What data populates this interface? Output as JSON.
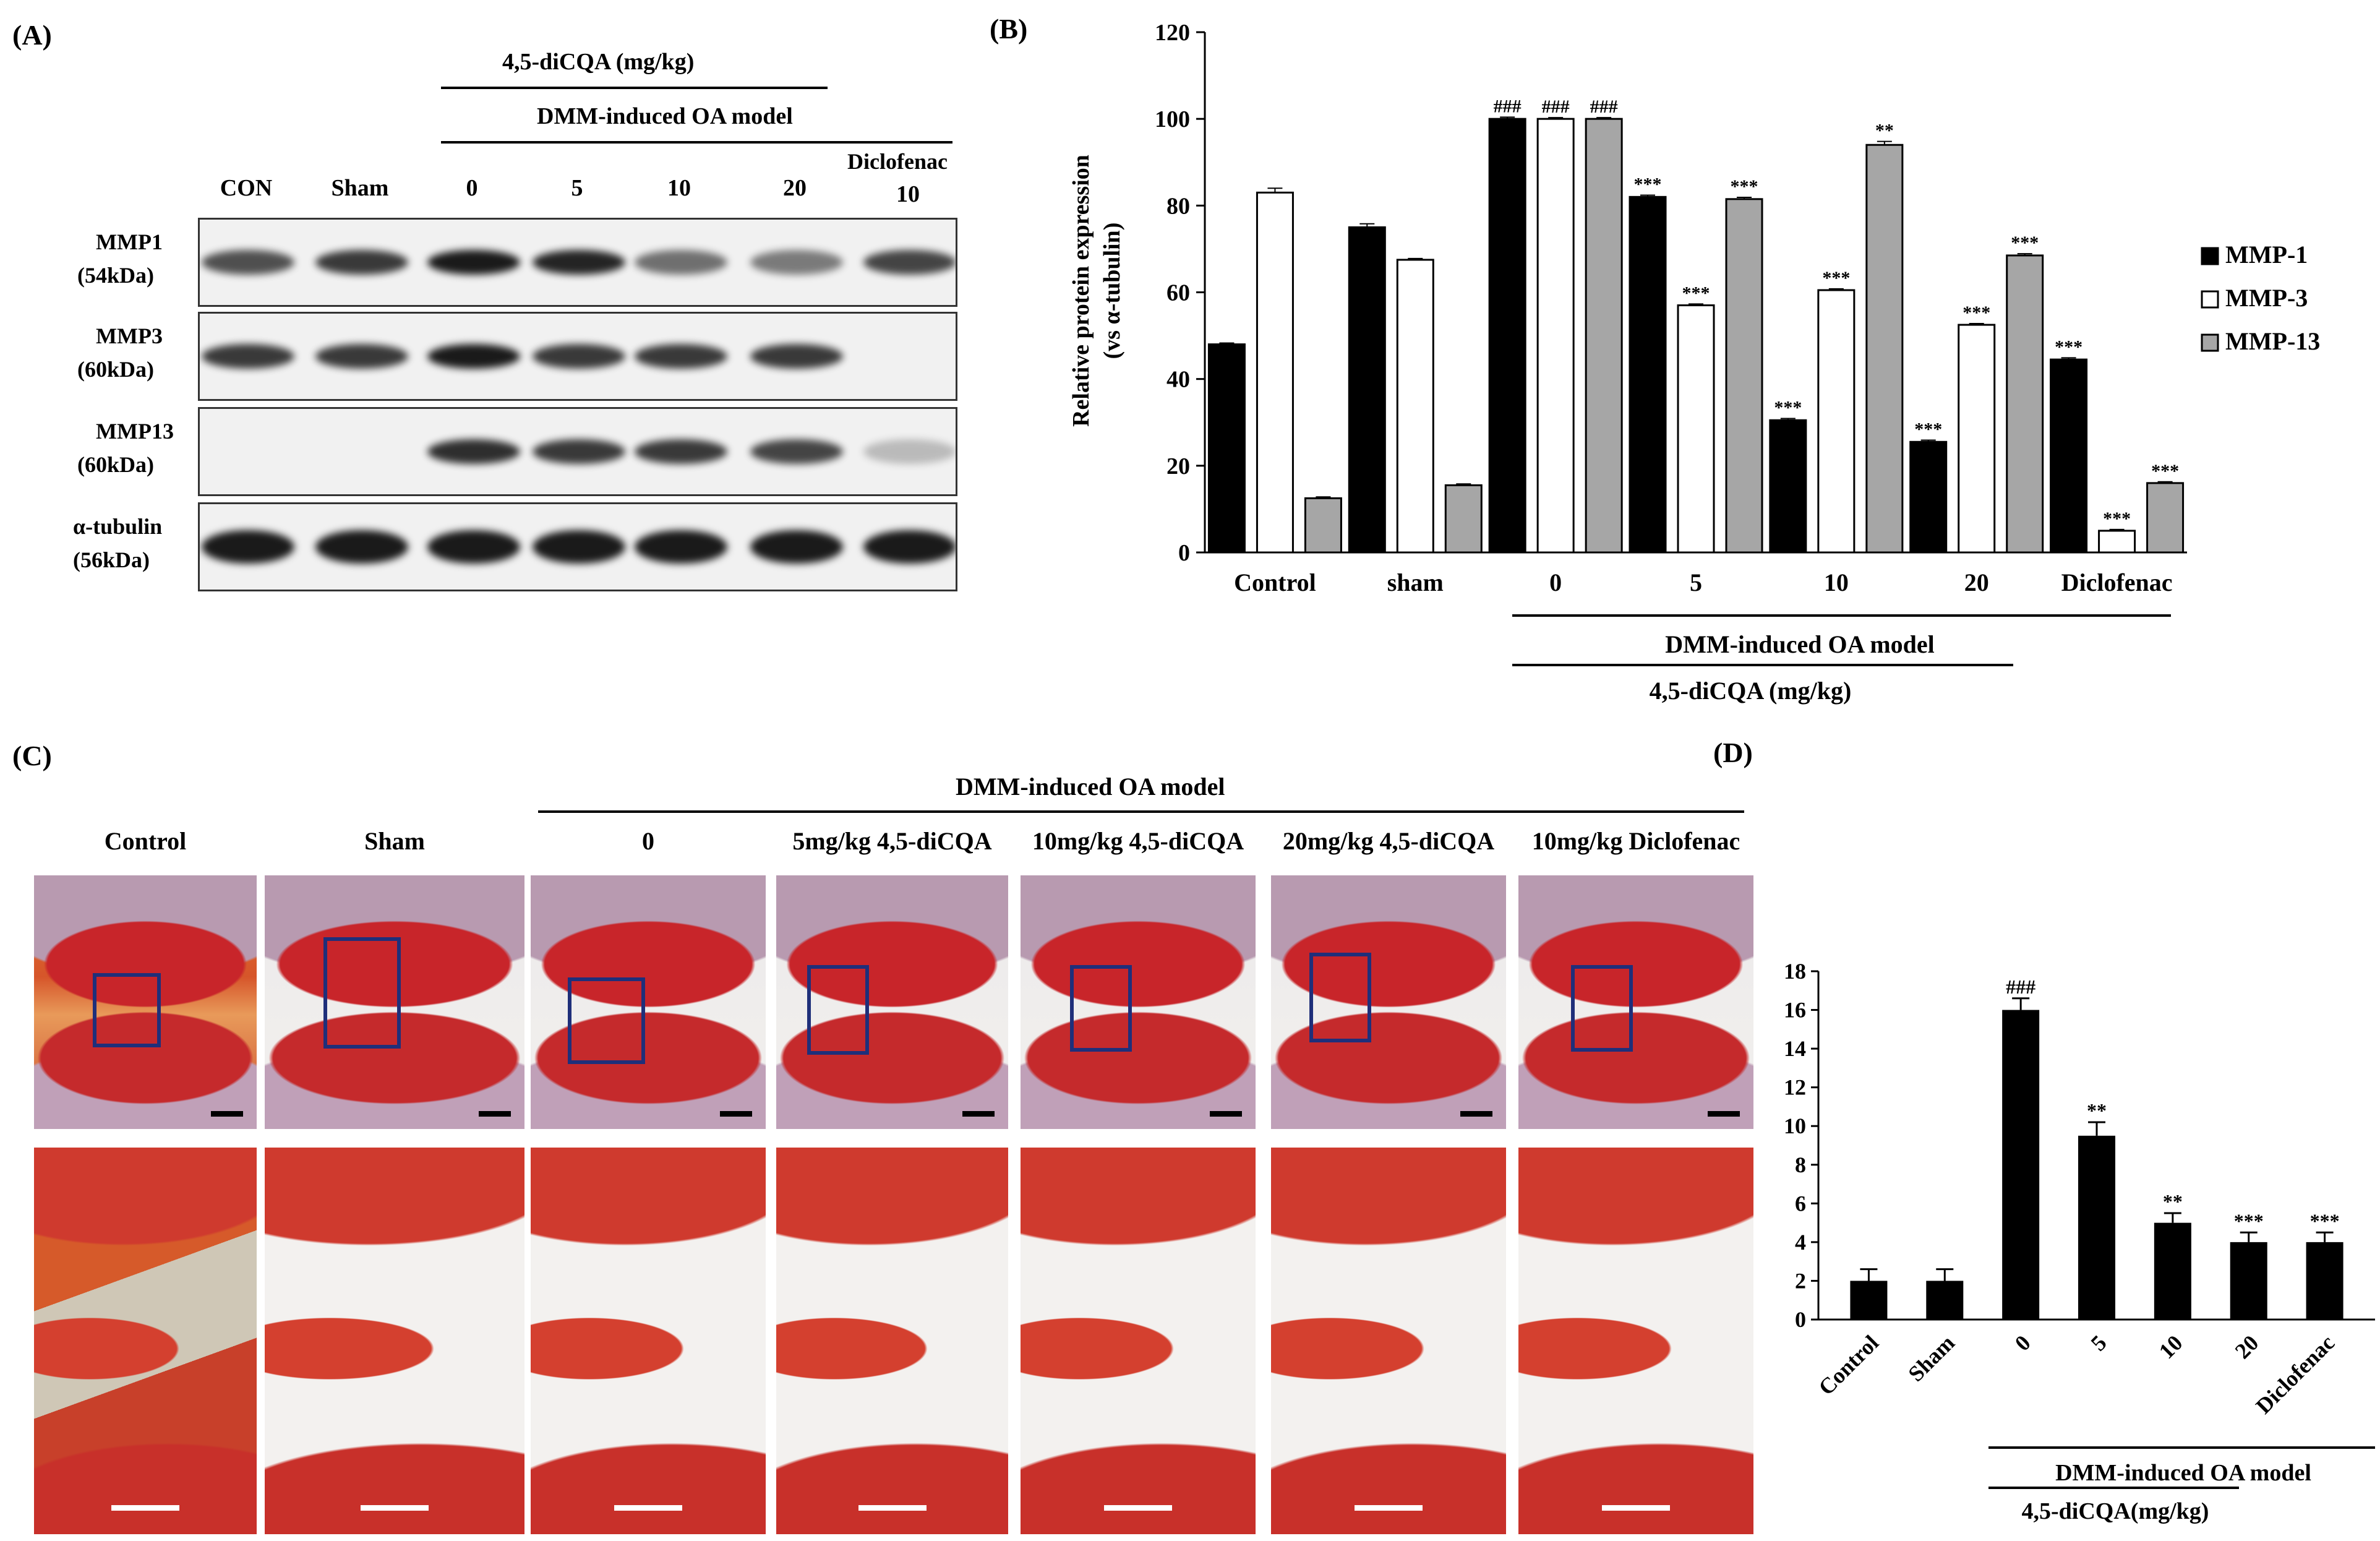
{
  "panels": {
    "a": "(A)",
    "b": "(B)",
    "c": "(C)",
    "d": "(D)"
  },
  "blot": {
    "group_top": "4,5-diCQA (mg/kg)",
    "group_bottom": "DMM-induced OA model",
    "lanes": [
      "CON",
      "Sham",
      "0",
      "5",
      "10",
      "20",
      "10"
    ],
    "diclofenac_label": "Diclofenac",
    "rows": [
      {
        "name": "MMP1",
        "kda": "(54kDa)",
        "intensity": [
          0.75,
          0.85,
          1.0,
          0.95,
          0.6,
          0.55,
          0.8
        ]
      },
      {
        "name": "MMP3",
        "kda": "(60kDa)",
        "intensity": [
          0.85,
          0.85,
          1.0,
          0.85,
          0.85,
          0.85,
          0.0
        ]
      },
      {
        "name": "MMP13",
        "kda": "(60kDa)",
        "intensity": [
          0.0,
          0.0,
          0.9,
          0.85,
          0.85,
          0.8,
          0.25
        ]
      },
      {
        "name": "α-tubulin",
        "kda": "(56kDa)",
        "intensity": [
          1.0,
          1.0,
          1.0,
          1.0,
          1.0,
          1.0,
          1.0
        ]
      }
    ]
  },
  "histology": {
    "header": "DMM-induced OA model",
    "columns": [
      "Control",
      "Sham",
      "0",
      "5mg/kg 4,5-diCQA",
      "10mg/kg 4,5-diCQA",
      "20mg/kg 4,5-diCQA",
      "10mg/kg Diclofenac"
    ]
  },
  "chart_data": [
    {
      "type": "bar",
      "categories": [
        "Control",
        "sham",
        "0",
        "5",
        "10",
        "20",
        "Diclofenac"
      ],
      "series": [
        {
          "name": "MMP-1",
          "color": "#000000",
          "values": [
            48,
            75,
            100,
            82,
            30.5,
            25.5,
            44.5
          ],
          "errors": [
            0.3,
            0.8,
            0.4,
            0.4,
            0.4,
            0.4,
            0.4
          ],
          "sig": [
            "",
            "",
            "###",
            "***",
            "***",
            "***",
            "***"
          ]
        },
        {
          "name": "MMP-3",
          "color": "#ffffff",
          "values": [
            83,
            67.5,
            100,
            57,
            60.5,
            52.5,
            5
          ],
          "errors": [
            1.0,
            0.3,
            0.3,
            0.3,
            0.3,
            0.3,
            0.3
          ],
          "sig": [
            "",
            "",
            "###",
            "***",
            "***",
            "***",
            "***"
          ]
        },
        {
          "name": "MMP-13",
          "color": "#a6a6a6",
          "values": [
            12.5,
            15.5,
            100,
            81.5,
            94,
            68.5,
            16
          ],
          "errors": [
            0.3,
            0.3,
            0.3,
            0.4,
            0.8,
            0.4,
            0.3
          ],
          "sig": [
            "",
            "",
            "###",
            "***",
            "**",
            "***",
            "***"
          ]
        }
      ],
      "ylabel": "Relative protein expression (vs α-tubulin)",
      "ylabel_line1": "Relative protein expression",
      "ylabel_line2": "(vs α-tubulin)",
      "ylim": [
        0,
        120
      ],
      "yticks": [
        0,
        20,
        40,
        60,
        80,
        100,
        120
      ],
      "legend": [
        "MMP-1",
        "MMP-3",
        "MMP-13"
      ],
      "legend_position": "right",
      "group_label_1": "DMM-induced OA model",
      "group_label_2": "4,5-diCQA (mg/kg)"
    },
    {
      "type": "bar",
      "categories": [
        "Control",
        "Sham",
        "0",
        "5",
        "10",
        "20",
        "Diclofenac"
      ],
      "values": [
        2,
        2,
        16,
        9.5,
        5,
        4,
        4
      ],
      "errors": [
        0.6,
        0.6,
        0.6,
        0.7,
        0.5,
        0.5,
        0.5
      ],
      "sig": [
        "",
        "",
        "###",
        "**",
        "**",
        "***",
        "***"
      ],
      "ylim": [
        0,
        18
      ],
      "yticks": [
        0,
        2,
        4,
        6,
        8,
        10,
        12,
        14,
        16,
        18
      ],
      "group_label_1": "DMM-induced OA model",
      "group_label_2": "4,5-diCQA(mg/kg)"
    }
  ]
}
